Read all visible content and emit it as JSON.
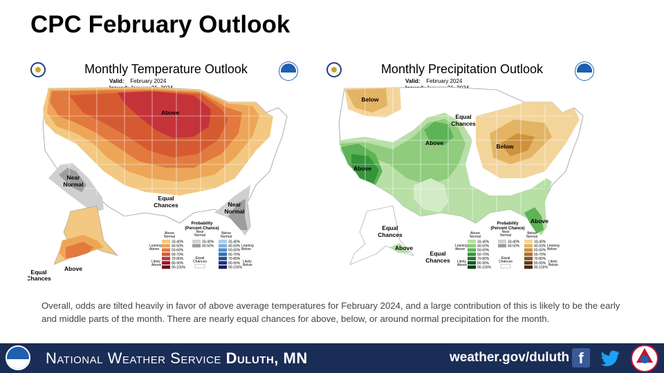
{
  "slide": {
    "title": "CPC February Outlook"
  },
  "temperature": {
    "title": "Monthly Temperature Outlook",
    "valid_key": "Valid:",
    "valid": "February 2024",
    "issued_key": "Issued:",
    "issued": "January 31, 2024",
    "labels": {
      "above": "Above",
      "near_normal_1": "Near",
      "near_normal_2": "Normal",
      "near_normal_se_1": "Near",
      "near_normal_se_2": "Normal",
      "equal_1": "Equal",
      "equal_2": "Chances",
      "ak_above": "Above",
      "ak_equal_1": "Equal",
      "ak_equal_2": "Chances"
    }
  },
  "precipitation": {
    "title": "Monthly Precipitation Outlook",
    "valid_key": "Valid:",
    "valid": "February 2024",
    "issued_key": "Issued:",
    "issued": "January 31, 2024",
    "labels": {
      "below_nw": "Below",
      "equal_1": "Equal",
      "equal_2": "Chances",
      "above_c": "Above",
      "above_sw": "Above",
      "below_ne": "Below",
      "above_fl": "Above",
      "ak_equal_1": "Equal",
      "ak_equal_2": "Chances",
      "ak_above": "Above",
      "ak_equal_3": "Equal",
      "ak_equal_4": "Chances"
    }
  },
  "legend": {
    "heading_1": "Probability",
    "heading_2": "(Percent Chance)",
    "col_above_1": "Above",
    "col_above_2": "Normal",
    "col_near_1": "Near",
    "col_near_2": "Normal",
    "col_below_1": "Below",
    "col_below_2": "Normal",
    "leaning_above_1": "Leaning",
    "leaning_above_2": "Above",
    "likely_above_1": "Likely",
    "likely_above_2": "Above",
    "leaning_below_1": "Leaning",
    "leaning_below_2": "Below",
    "likely_below_1": "Likely",
    "likely_below_2": "Below",
    "equal_1": "Equal",
    "equal_2": "Chances",
    "ranges": [
      "33-40%",
      "40-50%",
      "50-60%",
      "60-70%",
      "70-80%",
      "80-90%",
      "90-100%"
    ],
    "near_ranges": [
      "33-40%",
      "40-50%"
    ]
  },
  "colors": {
    "temp_above": [
      "#f2c882",
      "#eda658",
      "#e27a3f",
      "#d65a31",
      "#c5333a",
      "#9c1c2c",
      "#6d0f1e"
    ],
    "temp_below": [
      "#a9cde6",
      "#7fb1dc",
      "#4f8fcb",
      "#2e6fb5",
      "#1f4e9a",
      "#1a3580",
      "#221c66"
    ],
    "near": [
      "#cfcfcf",
      "#9d9d9d"
    ],
    "precip_above": [
      "#b7dfa6",
      "#8fcc7c",
      "#5eb356",
      "#35953b",
      "#1e7630",
      "#155c26",
      "#0d4219"
    ],
    "precip_below": [
      "#f3d59b",
      "#e2b463",
      "#cf913a",
      "#b0702a",
      "#8a5420",
      "#6b3c16",
      "#4d2a10"
    ],
    "footer_bg": "#1a2d56"
  },
  "description": "Overall, odds are tilted heavily in favor of above average temperatures for February 2024, and a large contribution of this is likely to be the early and middle parts of the month. There are nearly equal chances for above, below, or around normal precipitation for the month.",
  "footer": {
    "nws_prefix": "National Weather Service",
    "office": "Duluth, MN",
    "url": "weather.gov/duluth",
    "facebook_glyph": "f"
  }
}
